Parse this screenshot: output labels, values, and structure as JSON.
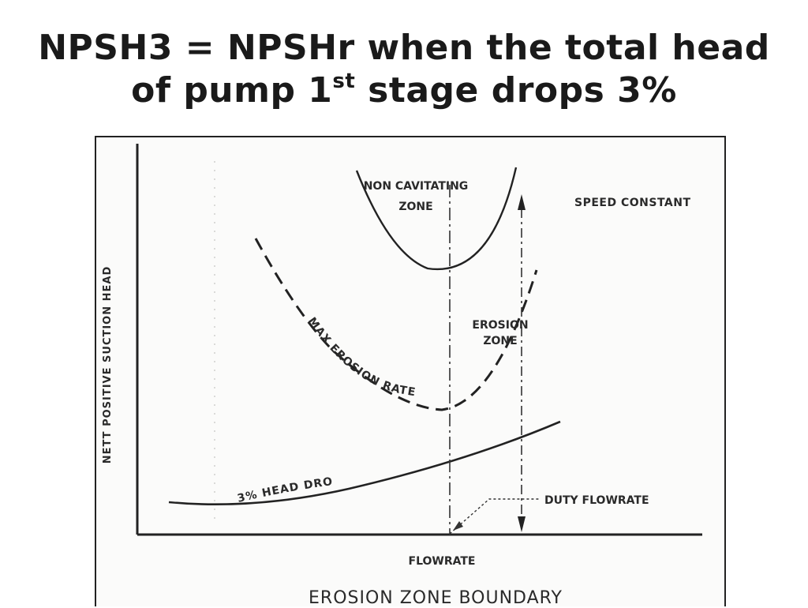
{
  "slide": {
    "title_line1": "NPSH3 = NPSHr when the total head",
    "title_line2_before": "of pump 1",
    "title_line2_sup": "st",
    "title_line2_after": " stage drops 3%"
  },
  "figure": {
    "y_axis_label": "NETT POSITIVE SUCTION HEAD",
    "x_axis_label": "FLOWRATE",
    "caption": "EROSION  ZONE  BOUNDARY",
    "speed_note": "SPEED CONSTANT",
    "non_cavitating_line1": "NON CAVITATING",
    "non_cavitating_line2": "ZONE",
    "erosion_zone_line1": "EROSION",
    "erosion_zone_line2": "ZONE",
    "max_erosion_label": "MAX EROSION RATE",
    "head_drop_label": "3% HEAD DROP",
    "duty_flowrate_label": "DUTY FLOWRATE"
  }
}
